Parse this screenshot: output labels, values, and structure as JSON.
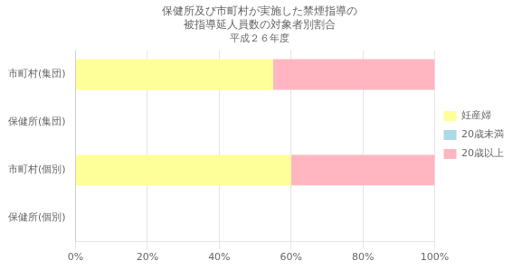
{
  "chart_data": {
    "type": "bar",
    "orientation": "horizontal",
    "stacked": true,
    "title": [
      "保健所及び市町村が実施した禁煙指導の",
      "被指導延人員数の対象者別割合"
    ],
    "subtitle": "平成２６年度",
    "categories": [
      "市町村(集団)",
      "保健所(集団)",
      "市町村(個別)",
      "保健所(個別)"
    ],
    "series": [
      {
        "name": "妊産婦",
        "color": "#FFFF99",
        "values": [
          55.0,
          0.0,
          60.0,
          0.0
        ]
      },
      {
        "name": "20歳未満",
        "color": "#ADD8E6",
        "values": [
          0.0,
          0.0,
          0.0,
          0.0
        ]
      },
      {
        "name": "20歳以上",
        "color": "#FFB6C1",
        "values": [
          45.0,
          0.0,
          40.0,
          0.0
        ]
      }
    ],
    "xlim": [
      0,
      100
    ],
    "xticks": [
      {
        "value": 0,
        "label": "0%"
      },
      {
        "value": 20,
        "label": "20%"
      },
      {
        "value": 40,
        "label": "40%"
      },
      {
        "value": 60,
        "label": "60%"
      },
      {
        "value": 80,
        "label": "80%"
      },
      {
        "value": 100,
        "label": "100%"
      }
    ],
    "grid": true,
    "legend": "right"
  }
}
